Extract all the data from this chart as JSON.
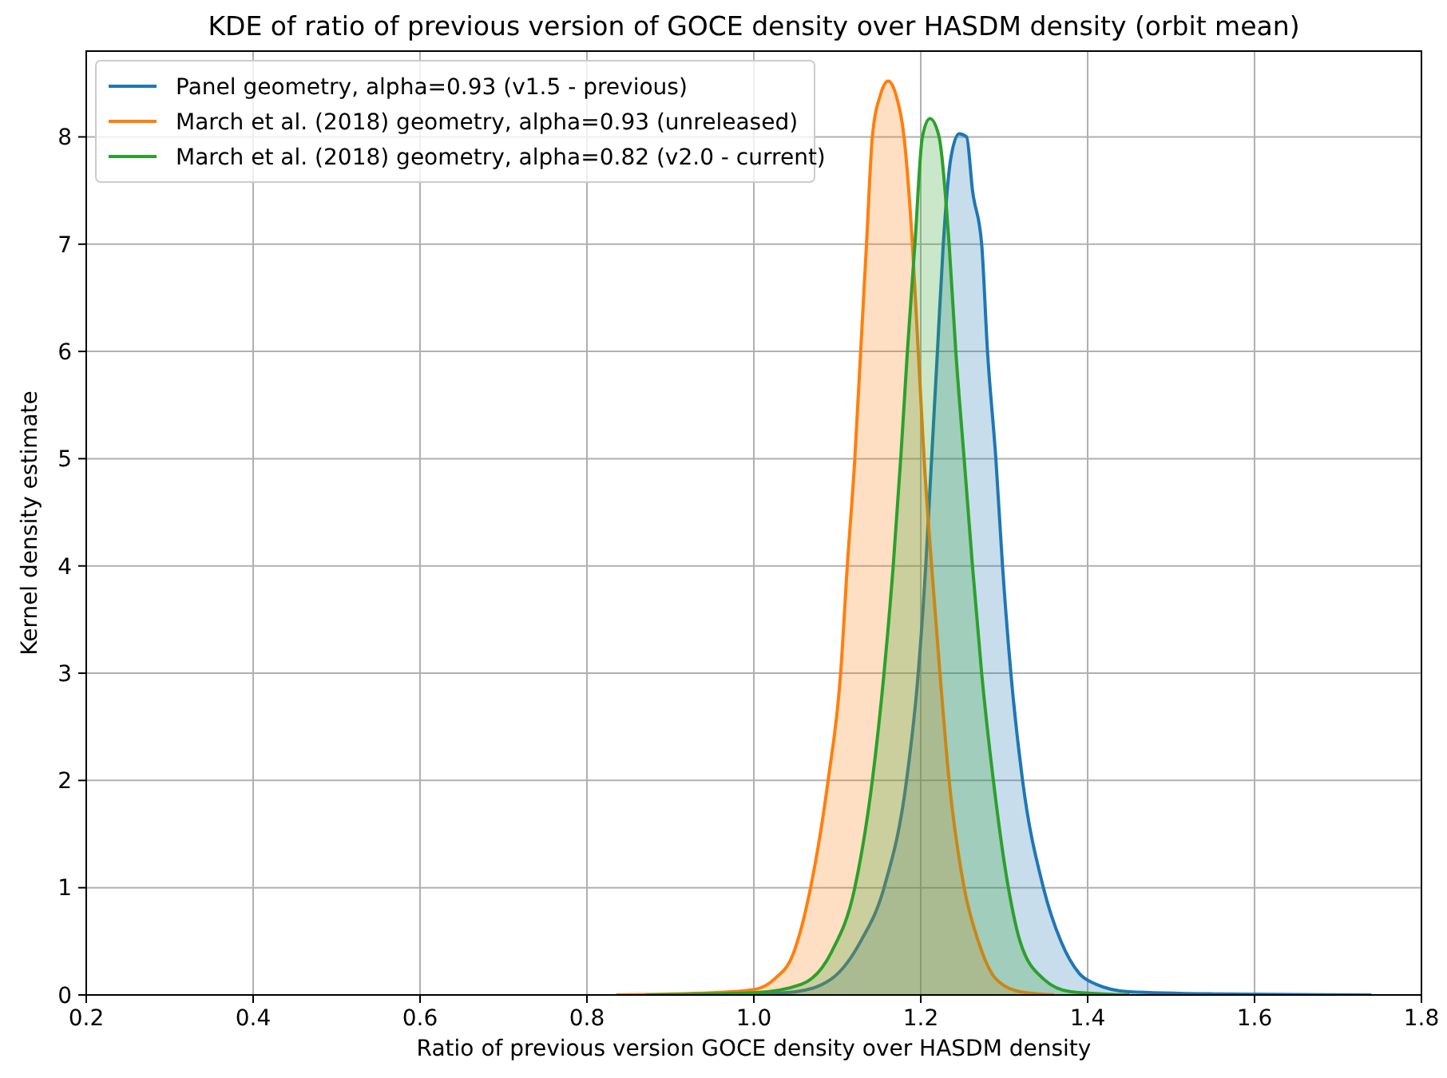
{
  "chart_data": {
    "type": "area",
    "title": "KDE of ratio of previous version of GOCE density over HASDM density (orbit mean)",
    "xlabel": "Ratio of previous version GOCE density over HASDM density",
    "ylabel": "Kernel density estimate",
    "xlim": [
      0.2,
      1.8
    ],
    "xticks": [
      {
        "value": 0.2,
        "label": "0.2"
      },
      {
        "value": 0.4,
        "label": "0.4"
      },
      {
        "value": 0.6,
        "label": "0.6"
      },
      {
        "value": 0.8,
        "label": "0.8"
      },
      {
        "value": 1.0,
        "label": "1.0"
      },
      {
        "value": 1.2,
        "label": "1.2"
      },
      {
        "value": 1.4,
        "label": "1.4"
      },
      {
        "value": 1.6,
        "label": "1.6"
      },
      {
        "value": 1.8,
        "label": "1.8"
      }
    ],
    "ylim": [
      0,
      8.8
    ],
    "yticks": [
      0,
      1,
      2,
      3,
      4,
      5,
      6,
      7,
      8
    ],
    "grid": true,
    "legend": "top left",
    "series": [
      {
        "name": "Panel geometry, alpha=0.93 (v1.5 - previous)",
        "color": "#1f77b4",
        "x": [
          0.98,
          1.05,
          1.093,
          1.128,
          1.156,
          1.183,
          1.197,
          1.206,
          1.213,
          1.22,
          1.227,
          1.236,
          1.246,
          1.255,
          1.262,
          1.273,
          1.28,
          1.29,
          1.298,
          1.308,
          1.322,
          1.347,
          1.368,
          1.39,
          1.41,
          1.45,
          1.55,
          1.74
        ],
        "values": [
          0,
          0.03,
          0.15,
          0.5,
          1,
          2,
          3,
          4,
          5,
          6,
          7,
          7.8,
          8.03,
          8,
          7.5,
          7,
          6,
          5,
          4,
          3,
          2,
          1,
          0.5,
          0.2,
          0.1,
          0.03,
          0.01,
          0
        ]
      },
      {
        "name": "March et al. (2018) geometry, alpha=0.93 (unreleased)",
        "color": "#ff7f0e",
        "x": [
          0.835,
          0.95,
          1.0,
          1.025,
          1.047,
          1.068,
          1.089,
          1.104,
          1.112,
          1.121,
          1.128,
          1.135,
          1.142,
          1.152,
          1.161,
          1.17,
          1.18,
          1.19,
          1.197,
          1.204,
          1.213,
          1.223,
          1.234,
          1.252,
          1.269,
          1.29,
          1.319,
          1.36
        ],
        "values": [
          0,
          0.02,
          0.05,
          0.15,
          0.38,
          1,
          2,
          3,
          4,
          5,
          6,
          7,
          8,
          8.4,
          8.52,
          8.4,
          8,
          7,
          6,
          5,
          4,
          3,
          2,
          1,
          0.5,
          0.15,
          0.03,
          0
        ]
      },
      {
        "name": "March et al. (2018) geometry, alpha=0.82 (v2.0 - current)",
        "color": "#2ca02c",
        "x": [
          0.87,
          1.0,
          1.057,
          1.093,
          1.121,
          1.142,
          1.156,
          1.167,
          1.176,
          1.184,
          1.193,
          1.202,
          1.211,
          1.222,
          1.234,
          1.242,
          1.252,
          1.262,
          1.273,
          1.287,
          1.305,
          1.319,
          1.347,
          1.38,
          1.45
        ],
        "values": [
          0,
          0.02,
          0.1,
          0.4,
          1,
          2,
          3,
          4,
          5,
          6,
          7,
          8,
          8.17,
          8,
          7,
          6,
          5,
          4,
          3,
          2,
          1,
          0.5,
          0.15,
          0.03,
          0
        ]
      }
    ]
  }
}
